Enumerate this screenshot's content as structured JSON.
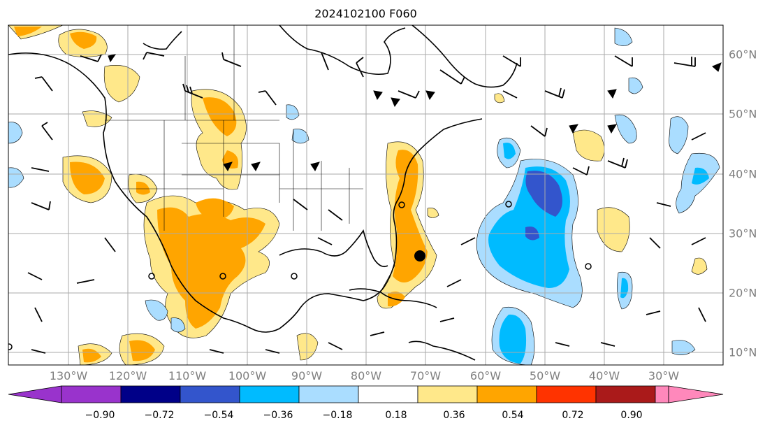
{
  "title": "2024102100 F060",
  "map": {
    "lon_labels": [
      "130°W",
      "120°W",
      "110°W",
      "100°W",
      "90°W",
      "80°W",
      "70°W",
      "60°W",
      "50°W",
      "40°W",
      "30°W"
    ],
    "lat_labels": [
      "60°N",
      "50°N",
      "40°N",
      "30°N",
      "20°N",
      "10°N"
    ],
    "extent": {
      "lon_min": -136,
      "lon_max": -24,
      "lat_min": 7.5,
      "lat_max": 65
    },
    "gridlines": true,
    "features": [
      "coastlines",
      "country-borders",
      "us-state-borders",
      "wind-barbs",
      "filled-contours"
    ]
  },
  "colorbar": {
    "extend": "both",
    "tick_labels": [
      "−0.90",
      "−0.72",
      "−0.54",
      "−0.36",
      "−0.18",
      "0.18",
      "0.36",
      "0.54",
      "0.72",
      "0.90"
    ],
    "colors": [
      "#9933cc",
      "#000088",
      "#3355cc",
      "#00bbff",
      "#aaddff",
      "#ffffff",
      "#ffe88a",
      "#ffa500",
      "#ff3300",
      "#aa1a1a",
      "#ff88bb"
    ]
  }
}
